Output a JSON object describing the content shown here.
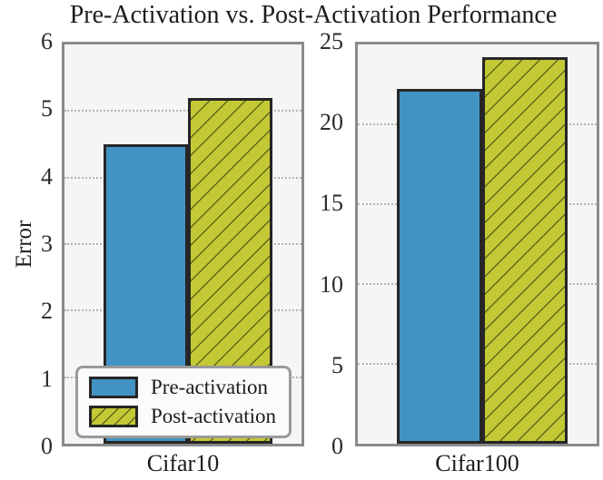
{
  "chart_data": {
    "type": "bar",
    "title": "Pre-Activation vs. Post-Activation Performance",
    "ylabel": "Error",
    "categories": [
      "Cifar10",
      "Cifar100"
    ],
    "series": [
      {
        "name": "Pre-activation",
        "color": "#4292c3",
        "hatch": "",
        "values": [
          4.5,
          22.2
        ]
      },
      {
        "name": "Post-activation",
        "color": "#c3c835",
        "hatch": "/",
        "values": [
          5.2,
          24.2
        ]
      }
    ],
    "subplots": [
      {
        "category": "Cifar10",
        "ylim": [
          0,
          6
        ],
        "yticks": [
          0,
          1,
          2,
          3,
          4,
          5,
          6
        ]
      },
      {
        "category": "Cifar100",
        "ylim": [
          0,
          25
        ],
        "yticks": [
          0,
          5,
          10,
          15,
          20,
          25
        ]
      }
    ],
    "legend": {
      "position": "lower-left",
      "entries": [
        "Pre-activation",
        "Post-activation"
      ]
    },
    "grid": "dotted horizontal",
    "style": {
      "bar_edge_color": "#262626",
      "plot_background": "#f5f5f4",
      "spine_color": "#8a8a8a",
      "grid_color": "#b5b5b5",
      "hatch_line_color": "#3c3c14"
    }
  }
}
